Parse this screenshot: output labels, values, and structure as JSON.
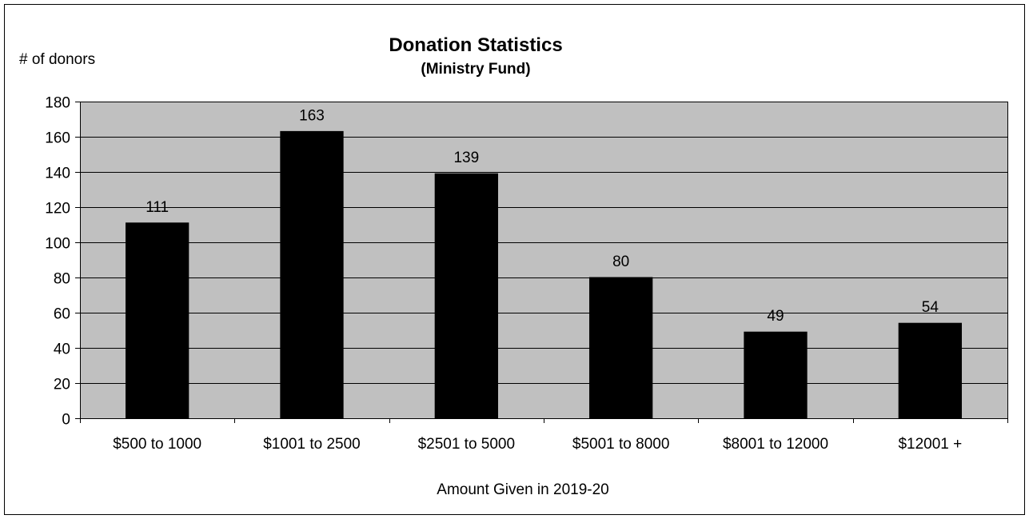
{
  "chart_data": {
    "type": "bar",
    "title": "Donation Statistics",
    "subtitle": "(Ministry Fund)",
    "ylabel": "# of donors",
    "xlabel": "Amount Given in 2019-20",
    "categories": [
      "$500 to 1000",
      "$1001 to 2500",
      "$2501 to 5000",
      "$5001 to 8000",
      "$8001 to 12000",
      "$12001 +"
    ],
    "values": [
      111,
      163,
      139,
      80,
      49,
      54
    ],
    "ylim": [
      0,
      180
    ],
    "yticks": [
      0,
      20,
      40,
      60,
      80,
      100,
      120,
      140,
      160,
      180
    ],
    "grid": true,
    "legend": "none",
    "colors": {
      "bar": "#000000",
      "plot_background": "#c0c0c0",
      "gridline": "#000000"
    }
  }
}
